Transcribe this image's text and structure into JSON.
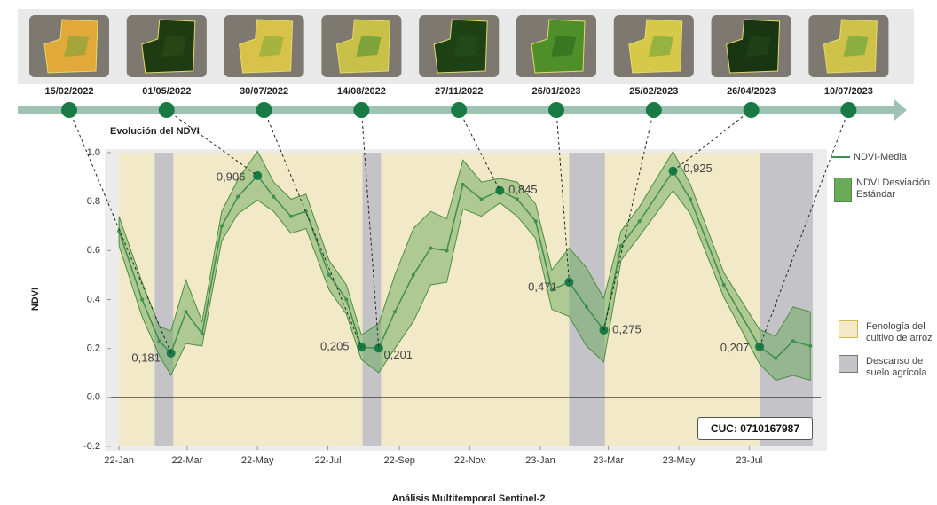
{
  "chart_data": {
    "type": "line",
    "title": "Evolución del NDVI",
    "xlabel": "Análisis Multitemporal Sentinel-2",
    "ylabel": "NDVI",
    "annotation": "CUC: 0710167987",
    "timeline": [
      "15/02/2022",
      "01/05/2022",
      "30/07/2022",
      "14/08/2022",
      "27/11/2022",
      "26/01/2023",
      "25/02/2023",
      "26/04/2023",
      "10/07/2023"
    ],
    "x": [
      "2022-01-01",
      "2022-01-21",
      "2022-02-05",
      "2022-02-15",
      "2022-02-28",
      "2022-03-14",
      "2022-03-31",
      "2022-04-14",
      "2022-05-01",
      "2022-05-15",
      "2022-05-30",
      "2022-06-12",
      "2022-07-02",
      "2022-07-17",
      "2022-07-30",
      "2022-08-14",
      "2022-08-28",
      "2022-09-13",
      "2022-09-28",
      "2022-10-12",
      "2022-10-26",
      "2022-11-11",
      "2022-11-27",
      "2022-12-12",
      "2022-12-28",
      "2023-01-11",
      "2023-01-26",
      "2023-02-10",
      "2023-02-25",
      "2023-03-12",
      "2023-03-28",
      "2023-04-26",
      "2023-05-11",
      "2023-06-09",
      "2023-07-10",
      "2023-07-24",
      "2023-08-08",
      "2023-08-23"
    ],
    "series": [
      {
        "name": "NDVI-Media",
        "color": "#3f8f4f",
        "values": [
          0.68,
          0.4,
          0.23,
          0.181,
          0.35,
          0.26,
          0.7,
          0.82,
          0.906,
          0.82,
          0.74,
          0.76,
          0.5,
          0.4,
          0.205,
          0.201,
          0.35,
          0.5,
          0.61,
          0.6,
          0.87,
          0.81,
          0.845,
          0.81,
          0.72,
          0.44,
          0.471,
          0.37,
          0.275,
          0.62,
          0.72,
          0.925,
          0.81,
          0.46,
          0.207,
          0.16,
          0.23,
          0.21
        ],
        "value_labels": [
          null,
          null,
          null,
          "0,181",
          null,
          null,
          null,
          null,
          "0,906",
          null,
          null,
          null,
          null,
          null,
          "0,205",
          "0,201",
          null,
          null,
          null,
          null,
          null,
          null,
          "0,845",
          null,
          null,
          null,
          "0,471",
          null,
          "0,275",
          null,
          null,
          "0,925",
          null,
          null,
          "0,207",
          null,
          null,
          null
        ]
      },
      {
        "name": "NDVI Desviación Estándar",
        "color": "#6aaa5a",
        "values": [
          0.06,
          0.07,
          0.06,
          0.09,
          0.13,
          0.05,
          0.06,
          0.07,
          0.1,
          0.06,
          0.07,
          0.07,
          0.06,
          0.06,
          0.05,
          0.1,
          0.15,
          0.19,
          0.15,
          0.13,
          0.1,
          0.07,
          0.05,
          0.07,
          0.07,
          0.08,
          0.14,
          0.16,
          0.13,
          0.06,
          0.06,
          0.08,
          0.06,
          0.05,
          0.07,
          0.09,
          0.14,
          0.14
        ]
      }
    ],
    "periods": [
      {
        "name": "Fenología del cultivo de arroz",
        "color": "#f2e9c8",
        "ranges": [
          [
            "2022-01-01",
            "2022-02-01"
          ],
          [
            "2022-02-17",
            "2022-07-31"
          ],
          [
            "2022-08-16",
            "2023-01-26"
          ],
          [
            "2023-02-26",
            "2023-07-10"
          ]
        ]
      },
      {
        "name": "Descanso de suelo agrícola",
        "color": "#c3c3c8",
        "ranges": [
          [
            "2022-02-01",
            "2022-02-17"
          ],
          [
            "2022-07-31",
            "2022-08-16"
          ],
          [
            "2023-01-26",
            "2023-02-26"
          ],
          [
            "2023-07-10",
            "2023-08-25"
          ]
        ]
      }
    ],
    "xlim": [
      "2021-12-25",
      "2023-09-01"
    ],
    "xticks": [
      {
        "value": "2022-01-01",
        "label": "22-Jan"
      },
      {
        "value": "2022-03-01",
        "label": "22-Mar"
      },
      {
        "value": "2022-05-01",
        "label": "22-May"
      },
      {
        "value": "2022-07-01",
        "label": "22-Jul"
      },
      {
        "value": "2022-09-01",
        "label": "22-Sep"
      },
      {
        "value": "2022-11-01",
        "label": "22-Nov"
      },
      {
        "value": "2023-01-01",
        "label": "23-Jan"
      },
      {
        "value": "2023-03-01",
        "label": "23-Mar"
      },
      {
        "value": "2023-05-01",
        "label": "23-May"
      },
      {
        "value": "2023-07-01",
        "label": "23-Jul"
      }
    ],
    "ylim": [
      -0.2,
      1.0
    ],
    "yticks": [
      {
        "value": 1,
        "label": "1.0"
      },
      0.8,
      0.6,
      0.4,
      0.2,
      {
        "value": 0,
        "label": "0.0"
      },
      -0.2
    ]
  }
}
